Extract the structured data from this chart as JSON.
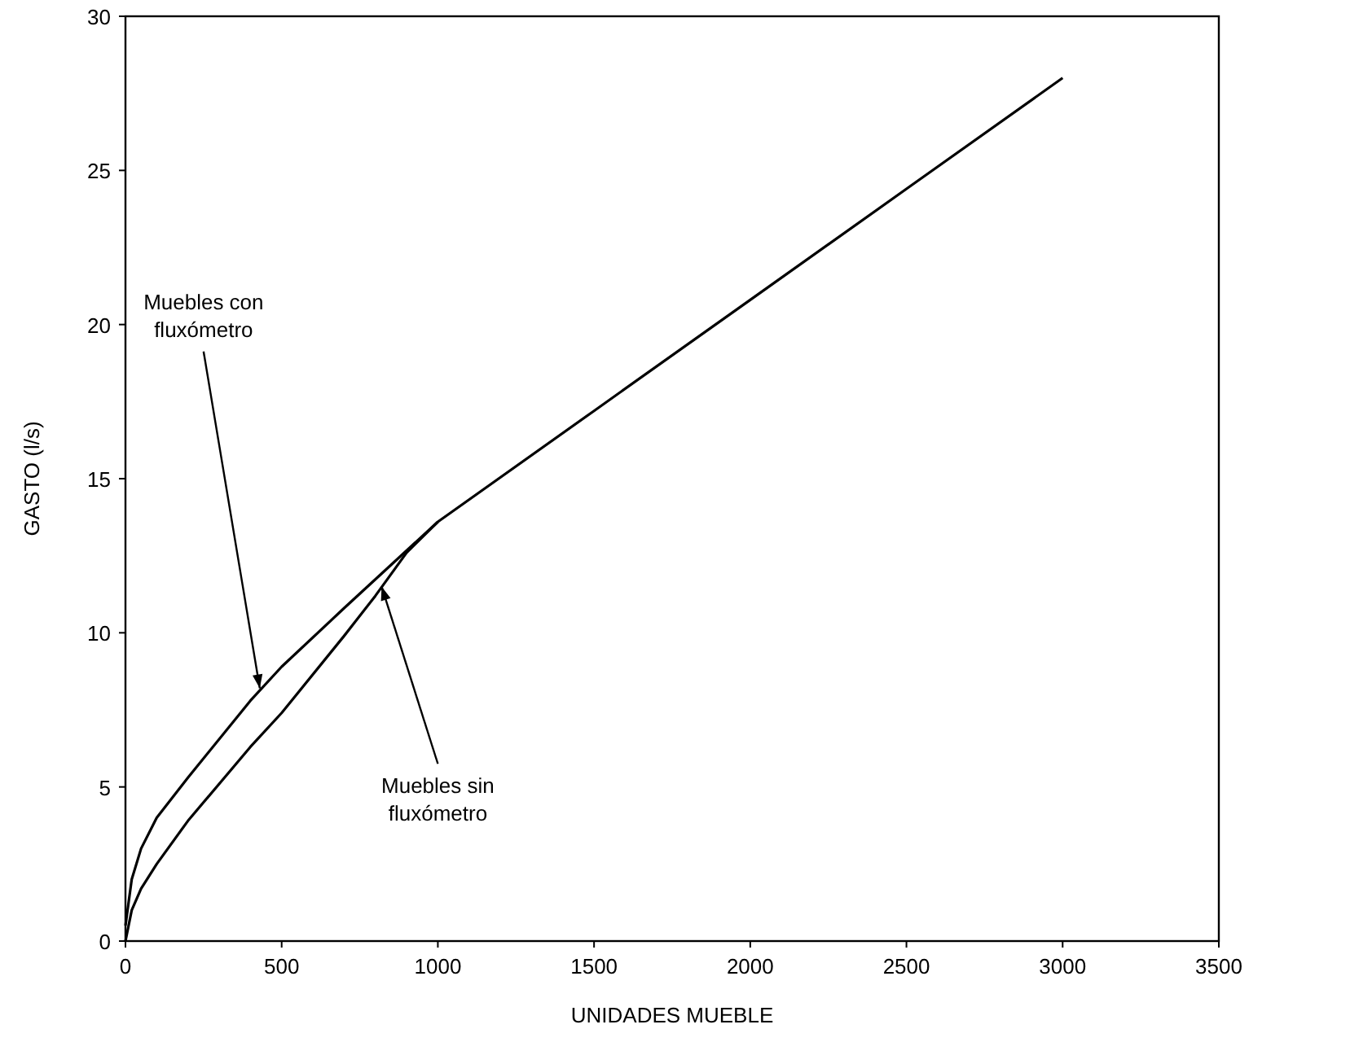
{
  "chart_data": {
    "type": "line",
    "xlabel": "UNIDADES MUEBLE",
    "ylabel": "GASTO (l/s)",
    "xlim": [
      0,
      3500
    ],
    "xticks": [
      0,
      500,
      1000,
      1500,
      2000,
      2500,
      3000,
      3500
    ],
    "ylim": [
      0,
      30
    ],
    "yticks": [
      0,
      5,
      10,
      15,
      20,
      25,
      30
    ],
    "series": [
      {
        "color": "#000000",
        "x": [
          0,
          20,
          50,
          100,
          200,
          400,
          500,
          700,
          1000,
          1500,
          2000,
          2500,
          3000
        ],
        "values": [
          0.5,
          2,
          3,
          4,
          5.3,
          7.8,
          8.9,
          10.8,
          13.6,
          17.2,
          20.8,
          24.4,
          28
        ]
      },
      {
        "color": "#000000",
        "x": [
          0,
          20,
          50,
          100,
          200,
          400,
          500,
          700,
          800,
          900,
          1000
        ],
        "values": [
          0,
          1,
          1.7,
          2.5,
          3.9,
          6.3,
          7.4,
          9.9,
          11.2,
          12.6,
          13.6
        ]
      }
    ],
    "annotations": [
      {
        "text": "Muebles con fluxómetro",
        "x": 430,
        "y": 8.2
      },
      {
        "text": "Muebles sin fluxómetro",
        "x": 820,
        "y": 11.5
      }
    ],
    "grid": false,
    "marker": "none",
    "line_style": "solid"
  }
}
